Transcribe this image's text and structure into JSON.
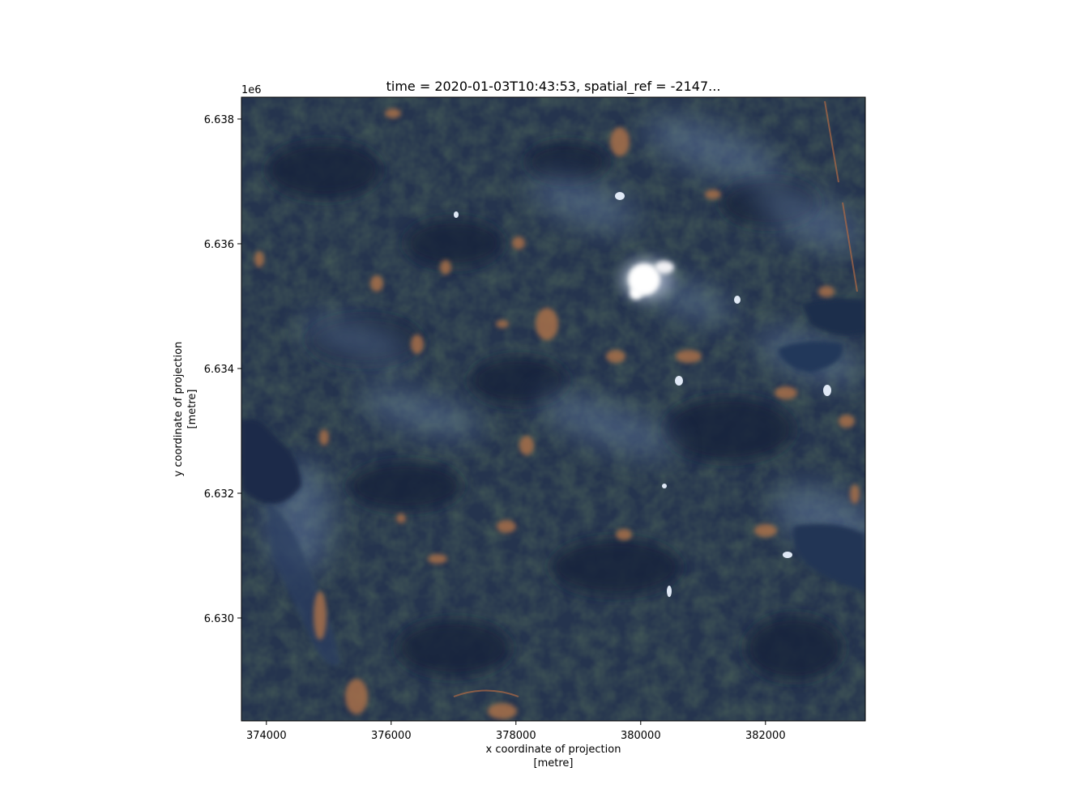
{
  "chart_data": {
    "type": "heatmap",
    "title": "time = 2020-01-03T10:43:53, spatial_ref = -2147...",
    "xlabel": [
      "x coordinate of projection",
      "[metre]"
    ],
    "ylabel": [
      "y coordinate of projection",
      "[metre]"
    ],
    "y_offset_label": "1e6",
    "xlim": [
      373600,
      383600
    ],
    "ylim": [
      6628350,
      6638350
    ],
    "x_ticks": [
      {
        "value": 374000,
        "label": "374000"
      },
      {
        "value": 376000,
        "label": "376000"
      },
      {
        "value": 378000,
        "label": "378000"
      },
      {
        "value": 380000,
        "label": "380000"
      },
      {
        "value": 382000,
        "label": "382000"
      }
    ],
    "y_ticks": [
      {
        "value": 6630000,
        "label": "6.630"
      },
      {
        "value": 6632000,
        "label": "6.632"
      },
      {
        "value": 6634000,
        "label": "6.634"
      },
      {
        "value": 6636000,
        "label": "6.636"
      },
      {
        "value": 6638000,
        "label": "6.638"
      }
    ],
    "image": "true-colour satellite scene: dark blue-green forest, brown clearings, lakes, small cloud near 380000 / 6.6355",
    "colors": {
      "forest": "#25344e",
      "dark_forest": "#17253a",
      "clearing": "#a8704a",
      "lake": "#1b2a4a",
      "haze": "#5d7698",
      "cloud": "#ffffff"
    }
  }
}
